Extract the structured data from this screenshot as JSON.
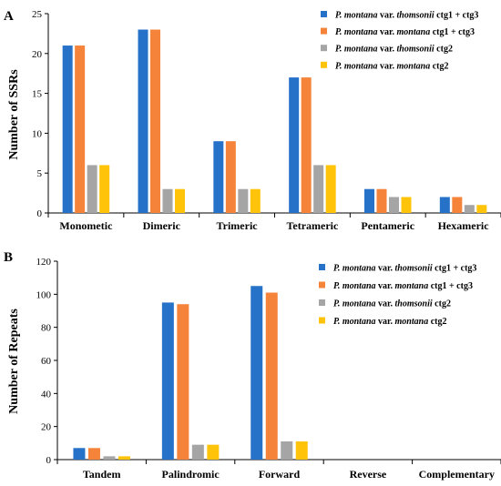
{
  "colors": {
    "series_1": "#2672C9",
    "series_2": "#F5843A",
    "series_3": "#A5A5A5",
    "series_4": "#FFC40A",
    "axis": "#000000"
  },
  "legend_items": [
    {
      "italic": "P. montana",
      "rest": " var. ",
      "italic2": "thomsonii",
      "tail": " ctg1 + ctg3"
    },
    {
      "italic": "P. montana",
      "rest": " var. ",
      "italic2": "montana",
      "tail": " ctg1 + ctg3"
    },
    {
      "italic": "P. montana",
      "rest": " var. ",
      "italic2": "thomsonii",
      "tail": " ctg2"
    },
    {
      "italic": "P. montana",
      "rest": " var. ",
      "italic2": "montana",
      "tail": " ctg2"
    }
  ],
  "chart_data": [
    {
      "panel_label": "A",
      "type": "bar",
      "ylabel": "Number of SSRs",
      "xlabel": "",
      "ylim": [
        0,
        25
      ],
      "yticks": [
        0,
        5,
        10,
        15,
        20,
        25
      ],
      "legend_position": "top-right",
      "grid": false,
      "categories": [
        "Monometic",
        "Dimeric",
        "Trimeric",
        "Tetrameric",
        "Pentameric",
        "Hexameric"
      ],
      "series": [
        {
          "name": "P. montana var. thomsonii ctg1 + ctg3",
          "values": [
            21,
            23,
            9,
            17,
            3,
            2
          ]
        },
        {
          "name": "P. montana var. montana ctg1 + ctg3",
          "values": [
            21,
            23,
            9,
            17,
            3,
            2
          ]
        },
        {
          "name": "P. montana var. thomsonii ctg2",
          "values": [
            6,
            3,
            3,
            6,
            2,
            1
          ]
        },
        {
          "name": "P. montana var. montana ctg2",
          "values": [
            6,
            3,
            3,
            6,
            2,
            1
          ]
        }
      ]
    },
    {
      "panel_label": "B",
      "type": "bar",
      "ylabel": "Number of Repeats",
      "xlabel": "",
      "ylim": [
        0,
        120
      ],
      "yticks": [
        0,
        20,
        40,
        60,
        80,
        100,
        120
      ],
      "legend_position": "top-right",
      "grid": false,
      "categories": [
        "Tandem",
        "Palindromic",
        "Forward",
        "Reverse",
        "Complementary"
      ],
      "series": [
        {
          "name": "P. montana var. thomsonii ctg1 + ctg3",
          "values": [
            7,
            95,
            105,
            0,
            0
          ]
        },
        {
          "name": "P. montana var. montana ctg1 + ctg3",
          "values": [
            7,
            94,
            101,
            0,
            0
          ]
        },
        {
          "name": "P. montana var. thomsonii ctg2",
          "values": [
            2,
            9,
            11,
            0,
            0
          ]
        },
        {
          "name": "P. montana var. montana ctg2",
          "values": [
            2,
            9,
            11,
            0,
            0
          ]
        }
      ]
    }
  ]
}
